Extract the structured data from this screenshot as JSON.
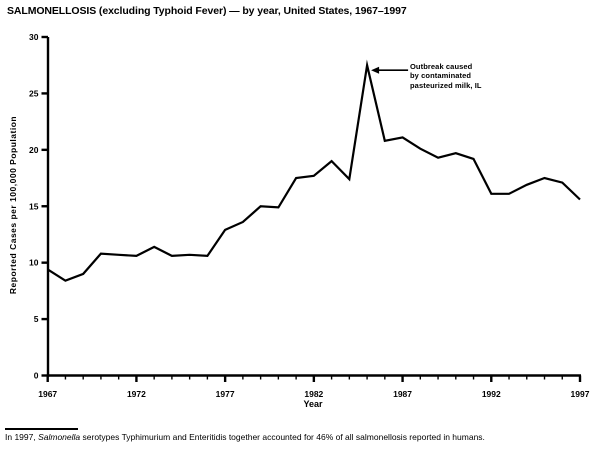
{
  "page": {
    "title": "SALMONELLOSIS (excluding Typhoid Fever) — by year, United States, 1967–1997"
  },
  "chart_data": {
    "type": "line",
    "title": "SALMONELLOSIS (excluding Typhoid Fever) — by year, United States, 1967–1997",
    "x": [
      1967,
      1968,
      1969,
      1970,
      1971,
      1972,
      1973,
      1974,
      1975,
      1976,
      1977,
      1978,
      1979,
      1980,
      1981,
      1982,
      1983,
      1984,
      1985,
      1986,
      1987,
      1988,
      1989,
      1990,
      1991,
      1992,
      1993,
      1994,
      1995,
      1996,
      1997
    ],
    "values": [
      9.4,
      8.4,
      9.0,
      10.8,
      10.7,
      10.6,
      11.4,
      10.6,
      10.7,
      10.6,
      12.9,
      13.6,
      15.0,
      14.9,
      17.5,
      17.7,
      19.0,
      17.4,
      27.5,
      20.8,
      21.1,
      20.1,
      19.3,
      19.7,
      19.2,
      16.1,
      16.1,
      16.9,
      17.5,
      17.1,
      15.6
    ],
    "xlabel": "Year",
    "ylabel": "Reported Cases per 100,000 Population",
    "ylim": [
      0,
      30
    ],
    "yticks": [
      0,
      5,
      10,
      15,
      20,
      25,
      30
    ],
    "xticks_labeled": [
      1967,
      1972,
      1977,
      1982,
      1987,
      1992,
      1997
    ],
    "grid": false,
    "legend": "none",
    "line_color": "#000000",
    "annotation": {
      "lines": [
        "Outbreak caused",
        "by contaminated",
        "pasteurized milk, IL"
      ],
      "target_year": 1985,
      "target_value": 27.5
    }
  },
  "footnote": {
    "prefix": "In 1997, ",
    "italic": "Salmonella",
    "rest": " serotypes Typhimurium and Enteritidis together accounted for 46% of all salmonellosis reported in humans."
  }
}
